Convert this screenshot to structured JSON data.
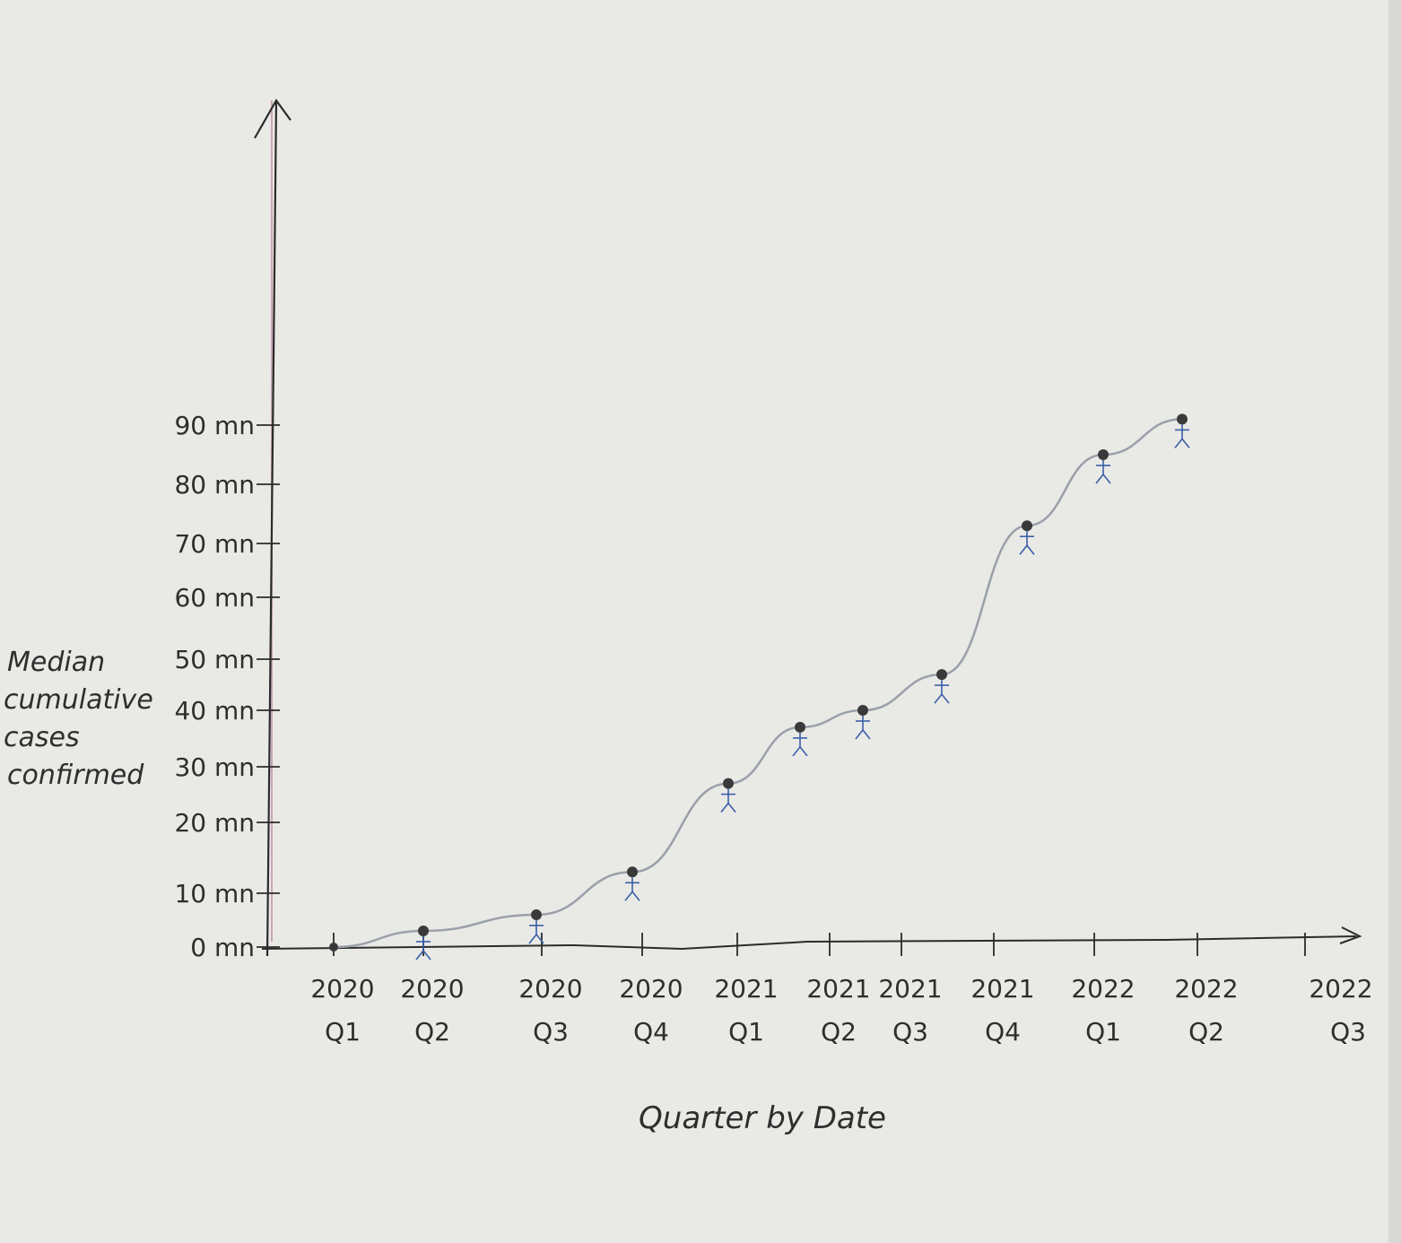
{
  "chart_data": {
    "type": "line",
    "title": "",
    "xlabel": "Quarter by Date",
    "ylabel_lines": [
      "Median",
      "cumulative",
      "cases",
      "confirmed"
    ],
    "y_ticks": [
      {
        "value": 0,
        "label": "0 mn"
      },
      {
        "value": 10,
        "label": "10 mn"
      },
      {
        "value": 20,
        "label": "20 mn"
      },
      {
        "value": 30,
        "label": "30 mn"
      },
      {
        "value": 40,
        "label": "40 mn"
      },
      {
        "value": 50,
        "label": "50 mn"
      },
      {
        "value": 60,
        "label": "60 mn"
      },
      {
        "value": 70,
        "label": "70 mn"
      },
      {
        "value": 80,
        "label": "80 mn"
      },
      {
        "value": 90,
        "label": "90 mn"
      }
    ],
    "x_categories": [
      {
        "year": "2020",
        "quarter": "Q1"
      },
      {
        "year": "2020",
        "quarter": "Q2"
      },
      {
        "year": "2020",
        "quarter": "Q3"
      },
      {
        "year": "2020",
        "quarter": "Q4"
      },
      {
        "year": "2021",
        "quarter": "Q1"
      },
      {
        "year": "2021",
        "quarter": "Q2"
      },
      {
        "year": "2021",
        "quarter": "Q3"
      },
      {
        "year": "2021",
        "quarter": "Q4"
      },
      {
        "year": "2022",
        "quarter": "Q1"
      },
      {
        "year": "2022",
        "quarter": "Q2"
      },
      {
        "year": "2022",
        "quarter": "Q3"
      }
    ],
    "series": [
      {
        "values": [
          0,
          3,
          6,
          13,
          27,
          37,
          40,
          47,
          73,
          85,
          91
        ]
      }
    ],
    "ylim": [
      0,
      100
    ],
    "grid": false,
    "colors": {
      "paper": "#e9e9e6",
      "axis": "#2b2b2b",
      "line": "#9aa0aa",
      "point": "#3a3a3a",
      "figure": "#3b5fa8",
      "margin_line": "#c9a7b8"
    }
  }
}
